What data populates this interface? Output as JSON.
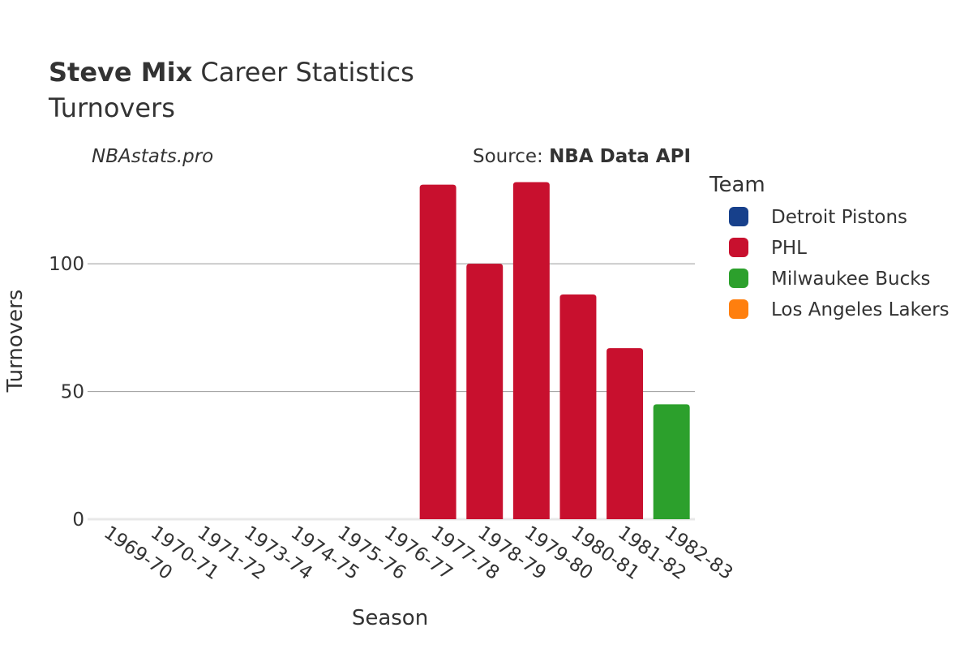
{
  "header": {
    "title_bold": "Steve Mix",
    "title_rest": " Career Statistics",
    "subtitle": "Turnovers",
    "watermark": "NBAstats.pro",
    "source_prefix": "Source: ",
    "source_name": "NBA Data API"
  },
  "legend": {
    "title": "Team",
    "placement": "right",
    "items": [
      {
        "label": "Detroit Pistons",
        "color": "#17408B"
      },
      {
        "label": "PHL",
        "color": "#C8102E"
      },
      {
        "label": "Milwaukee Bucks",
        "color": "#2CA02C"
      },
      {
        "label": "Los Angeles Lakers",
        "color": "#FF7F0E"
      }
    ]
  },
  "chart_data": {
    "type": "bar",
    "xlabel": "Season",
    "ylabel": "Turnovers",
    "ylim": [
      0,
      135
    ],
    "yticks": [
      0,
      50,
      100
    ],
    "grid": true,
    "categories": [
      "1969-70",
      "1970-71",
      "1971-72",
      "1973-74",
      "1974-75",
      "1975-76",
      "1976-77",
      "1977-78",
      "1978-79",
      "1979-80",
      "1980-81",
      "1981-82",
      "1982-83"
    ],
    "series": [
      {
        "name": "PHL",
        "color": "#C8102E",
        "values": [
          null,
          null,
          null,
          null,
          null,
          null,
          null,
          131,
          100,
          132,
          88,
          67,
          null
        ]
      },
      {
        "name": "Milwaukee Bucks",
        "color": "#2CA02C",
        "values": [
          null,
          null,
          null,
          null,
          null,
          null,
          null,
          null,
          null,
          null,
          null,
          null,
          45
        ]
      }
    ]
  }
}
